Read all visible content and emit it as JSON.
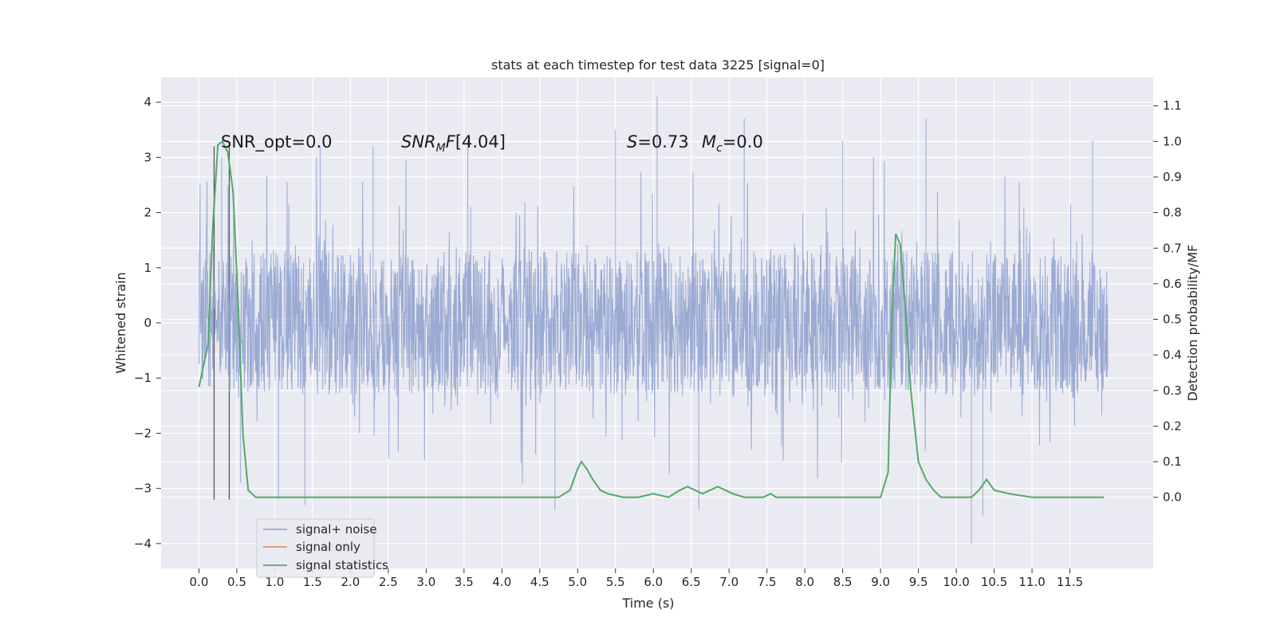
{
  "chart_data": {
    "type": "line",
    "title": "stats at each timestep for test data 3225 [signal=0]",
    "xlabel": "Time (s)",
    "ylabel_left": "Whitened strain",
    "ylabel_right": "Detection probability/MF",
    "xlim": [
      -0.5,
      12.6
    ],
    "ylim_left": [
      -4.45,
      4.45
    ],
    "ylim_right": [
      -0.2,
      1.18
    ],
    "x_ticks": [
      "0.0",
      "0.5",
      "1.0",
      "1.5",
      "2.0",
      "2.5",
      "3.0",
      "3.5",
      "4.0",
      "4.5",
      "5.0",
      "5.5",
      "6.0",
      "6.5",
      "7.0",
      "7.5",
      "8.0",
      "8.5",
      "9.0",
      "9.5",
      "10.0",
      "10.5",
      "11.0",
      "11.5"
    ],
    "y_ticks_left": [
      "−4",
      "−3",
      "−2",
      "−1",
      "0",
      "1",
      "2",
      "3",
      "4"
    ],
    "y_ticks_right": [
      "0.0",
      "0.1",
      "0.2",
      "0.3",
      "0.4",
      "0.5",
      "0.6",
      "0.7",
      "0.8",
      "0.9",
      "1.0",
      "1.1"
    ],
    "grid": true,
    "legend_position": "lower-left",
    "colors": {
      "background": "#eaeaf2",
      "grid": "#ffffff",
      "noise": "#8c9fce",
      "signal_only": "#dd8452",
      "statistics": "#55a868",
      "markers": "#555555"
    },
    "legend": [
      {
        "label": "signal+ noise",
        "color": "#8c9fce"
      },
      {
        "label": "signal only",
        "color": "#dd8452"
      },
      {
        "label": "signal statistics",
        "color": "#55a868"
      }
    ],
    "legend_overlap_text": "noise",
    "annotations": {
      "snr_opt": "SNR_opt=0.0",
      "snr_mf": "[4.04]",
      "s_stat": "=0.73",
      "mc": "=0.0"
    },
    "noise_series": {
      "name": "signal+ noise",
      "x_range": [
        0.0,
        12.0
      ],
      "typical_amplitude": 1.3,
      "peak_values": [
        {
          "x": 0.3,
          "y": 3.0
        },
        {
          "x": 0.55,
          "y": -2.9
        },
        {
          "x": 1.05,
          "y": -3.2
        },
        {
          "x": 1.4,
          "y": -3.3
        },
        {
          "x": 1.6,
          "y": 3.2
        },
        {
          "x": 2.3,
          "y": 3.2
        },
        {
          "x": 3.55,
          "y": 3.3
        },
        {
          "x": 4.7,
          "y": -3.4
        },
        {
          "x": 5.5,
          "y": 3.5
        },
        {
          "x": 6.05,
          "y": 4.1
        },
        {
          "x": 6.6,
          "y": -3.4
        },
        {
          "x": 7.2,
          "y": 3.7
        },
        {
          "x": 8.5,
          "y": 3.3
        },
        {
          "x": 9.6,
          "y": 3.7
        },
        {
          "x": 10.2,
          "y": -4.0
        },
        {
          "x": 10.35,
          "y": -3.5
        },
        {
          "x": 11.8,
          "y": 3.3
        }
      ]
    },
    "statistics_series": {
      "name": "signal statistics",
      "x": [
        0.0,
        0.12,
        0.18,
        0.25,
        0.31,
        0.38,
        0.45,
        0.52,
        0.58,
        0.65,
        0.75,
        1.0,
        1.5,
        2.0,
        2.5,
        3.0,
        3.5,
        4.0,
        4.5,
        4.75,
        4.9,
        5.0,
        5.05,
        5.12,
        5.2,
        5.3,
        5.4,
        5.6,
        5.8,
        6.0,
        6.2,
        6.35,
        6.45,
        6.55,
        6.65,
        6.75,
        6.85,
        6.95,
        7.05,
        7.2,
        7.45,
        7.55,
        7.62,
        7.7,
        8.0,
        8.5,
        9.0,
        9.1,
        9.15,
        9.2,
        9.26,
        9.32,
        9.4,
        9.5,
        9.6,
        9.7,
        9.8,
        10.0,
        10.2,
        10.3,
        10.4,
        10.5,
        10.7,
        11.0,
        11.5,
        11.95
      ],
      "y": [
        0.31,
        0.43,
        0.75,
        0.99,
        1.0,
        0.97,
        0.86,
        0.53,
        0.18,
        0.02,
        0.0,
        0.0,
        0.0,
        0.0,
        0.0,
        0.0,
        0.0,
        0.0,
        0.0,
        0.0,
        0.02,
        0.08,
        0.1,
        0.08,
        0.05,
        0.02,
        0.01,
        0.0,
        0.0,
        0.01,
        0.0,
        0.02,
        0.03,
        0.02,
        0.01,
        0.02,
        0.03,
        0.02,
        0.01,
        0.0,
        0.0,
        0.01,
        0.0,
        0.0,
        0.0,
        0.0,
        0.0,
        0.07,
        0.5,
        0.74,
        0.71,
        0.55,
        0.3,
        0.1,
        0.05,
        0.02,
        0.0,
        0.0,
        0.0,
        0.02,
        0.05,
        0.02,
        0.01,
        0.0,
        0.0,
        0.0
      ]
    },
    "marker_lines": {
      "x": [
        0.2,
        0.4
      ],
      "y_left_range": [
        -3.2,
        3.2
      ]
    }
  }
}
